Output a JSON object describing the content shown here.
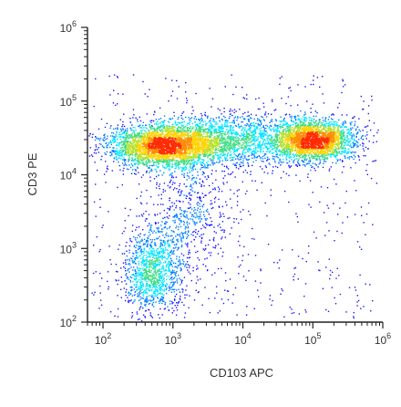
{
  "chart_data": {
    "type": "scatter",
    "title": "",
    "xlabel": "CD103 APC",
    "ylabel": "CD3 PE",
    "x_scale": "log",
    "y_scale": "log",
    "xlim": [
      60,
      1000000
    ],
    "ylim": [
      100,
      1000000
    ],
    "x_ticks": [
      {
        "value": 100,
        "base": "10",
        "exp": "2"
      },
      {
        "value": 1000,
        "base": "10",
        "exp": "3"
      },
      {
        "value": 10000,
        "base": "10",
        "exp": "4"
      },
      {
        "value": 100000,
        "base": "10",
        "exp": "5"
      },
      {
        "value": 1000000,
        "base": "10",
        "exp": "6"
      }
    ],
    "y_ticks": [
      {
        "value": 100,
        "base": "10",
        "exp": "2"
      },
      {
        "value": 1000,
        "base": "10",
        "exp": "3"
      },
      {
        "value": 10000,
        "base": "10",
        "exp": "4"
      },
      {
        "value": 100000,
        "base": "10",
        "exp": "5"
      },
      {
        "value": 1000000,
        "base": "10",
        "exp": "6"
      }
    ],
    "grid": false,
    "legend": "none",
    "color_map": "density (blue → cyan → green → yellow → orange → red)",
    "density_colors": [
      "#1a1aff",
      "#0080ff",
      "#00e5ff",
      "#3ddc84",
      "#b6e02a",
      "#ffd200",
      "#ff8c00",
      "#ff2a00"
    ],
    "populations": [
      {
        "x_center": 700,
        "y_center": 25000,
        "x_spread_decades": 0.38,
        "y_spread_decades": 0.14,
        "weight": 0.33
      },
      {
        "x_center": 100000,
        "y_center": 30000,
        "x_spread_decades": 0.3,
        "y_spread_decades": 0.14,
        "weight": 0.28
      },
      {
        "x_center": 5000,
        "y_center": 30000,
        "x_spread_decades": 0.55,
        "y_spread_decades": 0.18,
        "weight": 0.2
      },
      {
        "x_center": 500,
        "y_center": 500,
        "x_spread_decades": 0.22,
        "y_spread_decades": 0.28,
        "weight": 0.12
      },
      {
        "x_center": 1500,
        "y_center": 3000,
        "x_spread_decades": 0.35,
        "y_spread_decades": 0.45,
        "weight": 0.07
      }
    ]
  }
}
